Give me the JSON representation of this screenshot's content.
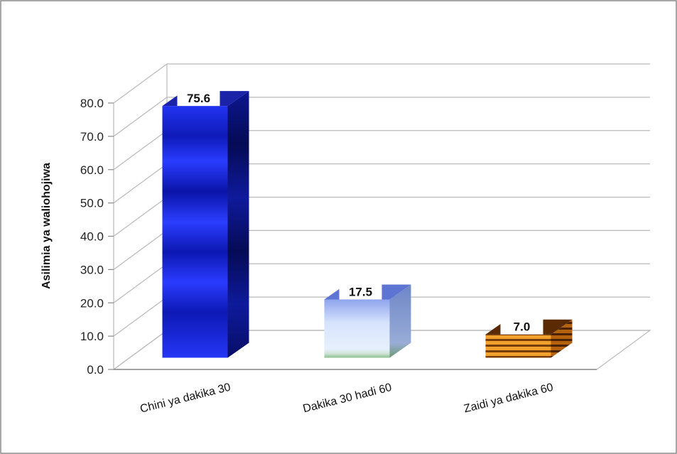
{
  "chart_data": {
    "type": "bar",
    "title": "",
    "xlabel": "",
    "ylabel": "Asilimia ya waliohojiwa",
    "categories": [
      "Chini ya dakika 30",
      "Dakika 30 hadi 60",
      "Zaidi ya dakika 60"
    ],
    "values": [
      75.6,
      17.5,
      7.0
    ],
    "data_labels": [
      "75.6",
      "17.5",
      "7.0"
    ],
    "yticks": [
      "0.0",
      "10.0",
      "20.0",
      "30.0",
      "40.0",
      "50.0",
      "60.0",
      "70.0",
      "80.0"
    ],
    "ylim": [
      0,
      80
    ],
    "grid": true,
    "legend": "none",
    "style": "3d-bar",
    "bar_styles": [
      "dark-blue-gradient",
      "light-blue-gradient",
      "orange-brown-striped"
    ],
    "colors": {
      "bar1": "#1a2fe0",
      "bar2": "#cfe0f8",
      "bar3": "#d98a1e",
      "grid": "#b9b9b9",
      "frame": "#8a8a8a"
    }
  }
}
